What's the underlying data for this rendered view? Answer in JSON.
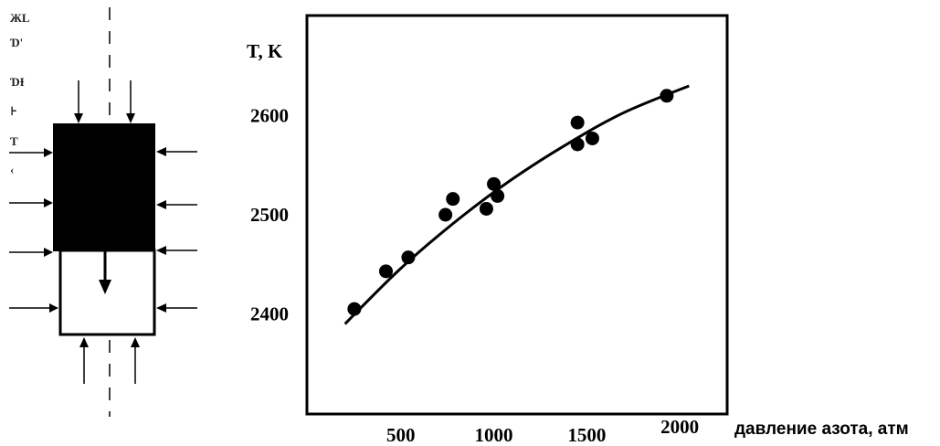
{
  "margin_marks": [
    "ЖL",
    "Ɗ'",
    "ƊƗ",
    "⊦",
    "Ƭ",
    "‹"
  ],
  "chart_data": {
    "type": "scatter",
    "title": "",
    "ylabel": "T, K",
    "xlabel": "давление азота, атм",
    "xlim": [
      0,
      2250
    ],
    "ylim": [
      2300,
      2700
    ],
    "xticks": [
      500,
      1000,
      1500,
      2000
    ],
    "yticks": [
      2400,
      2500,
      2600
    ],
    "grid": false,
    "series": [
      {
        "marker": "filled-circle",
        "color": "#000000",
        "points": [
          {
            "x": 250,
            "y": 2405
          },
          {
            "x": 420,
            "y": 2443
          },
          {
            "x": 540,
            "y": 2457
          },
          {
            "x": 740,
            "y": 2500
          },
          {
            "x": 780,
            "y": 2516
          },
          {
            "x": 960,
            "y": 2506
          },
          {
            "x": 1000,
            "y": 2531
          },
          {
            "x": 1020,
            "y": 2519
          },
          {
            "x": 1450,
            "y": 2593
          },
          {
            "x": 1450,
            "y": 2571
          },
          {
            "x": 1530,
            "y": 2577
          },
          {
            "x": 1930,
            "y": 2620
          }
        ]
      }
    ],
    "fit_curve": {
      "color": "#000000",
      "points": [
        {
          "x": 200,
          "y": 2390
        },
        {
          "x": 500,
          "y": 2446
        },
        {
          "x": 800,
          "y": 2494
        },
        {
          "x": 1100,
          "y": 2536
        },
        {
          "x": 1400,
          "y": 2572
        },
        {
          "x": 1700,
          "y": 2603
        },
        {
          "x": 2050,
          "y": 2630
        }
      ]
    }
  }
}
